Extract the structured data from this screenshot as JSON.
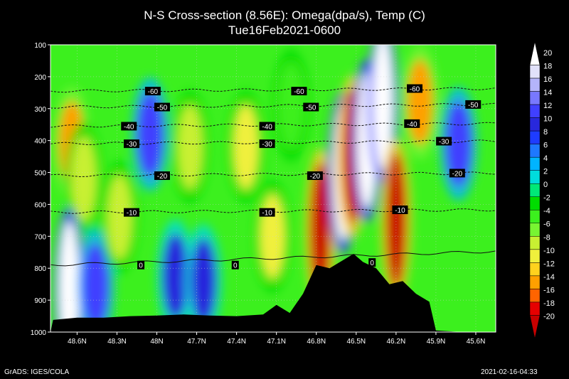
{
  "title": "N-S Cross-section (8.56E): Omega(dpa/s), Temp (C)",
  "subtitle": "Tue16Feb2021-0600",
  "credit": "GrADS: IGES/COLA",
  "timestamp": "2021-02-16-04:33",
  "chart_data": {
    "type": "heatmap",
    "xlabel": "",
    "ylabel": "",
    "x_ticks": [
      "48.6N",
      "48.3N",
      "48N",
      "47.7N",
      "47.4N",
      "47.1N",
      "46.8N",
      "46.5N",
      "46.2N",
      "45.9N",
      "45.6N"
    ],
    "x_tick_values": [
      48.6,
      48.3,
      48.0,
      47.7,
      47.4,
      47.1,
      46.8,
      46.5,
      46.2,
      45.9,
      45.6
    ],
    "xlim": [
      48.8,
      45.45
    ],
    "y_ticks": [
      "100",
      "200",
      "300",
      "400",
      "500",
      "600",
      "700",
      "800",
      "900",
      "1000"
    ],
    "y_tick_values": [
      100,
      200,
      300,
      400,
      500,
      600,
      700,
      800,
      900,
      1000
    ],
    "ylim": [
      1000,
      100
    ],
    "grid": "dotted",
    "colorbar": {
      "labels": [
        "20",
        "18",
        "16",
        "14",
        "12",
        "10",
        "8",
        "6",
        "4",
        "2",
        "0",
        "-2",
        "-4",
        "-6",
        "-8",
        "-10",
        "-12",
        "-14",
        "-16",
        "-18",
        "-20"
      ],
      "colors": [
        "#ffffff",
        "#e1e1fa",
        "#b4b4fa",
        "#7878ff",
        "#4040ff",
        "#2828dc",
        "#1e3cff",
        "#1e78ff",
        "#00b4ff",
        "#00dcdc",
        "#00e878",
        "#00dc00",
        "#3cf01e",
        "#78f532",
        "#c8f032",
        "#f0f03c",
        "#ffd21e",
        "#ffa000",
        "#ff6400",
        "#e60000",
        "#c80000"
      ]
    },
    "temperature_contours": [
      {
        "label": "-60",
        "pressure": 245
      },
      {
        "label": "-50",
        "pressure": 295
      },
      {
        "label": "-40",
        "pressure": 355
      },
      {
        "label": "-30",
        "pressure": 410
      },
      {
        "label": "-20",
        "pressure": 510
      },
      {
        "label": "-10",
        "pressure": 625
      },
      {
        "label": "0",
        "pressure": 790
      }
    ],
    "contour_label_positions": [
      {
        "label": "-60",
        "lat": 48.03
      },
      {
        "label": "-60",
        "lat": 46.93
      },
      {
        "label": "-60",
        "lat": 46.06
      },
      {
        "label": "-50",
        "lat": 47.96
      },
      {
        "label": "-50",
        "lat": 46.84
      },
      {
        "label": "-50",
        "lat": 45.62
      },
      {
        "label": "-40",
        "lat": 48.21
      },
      {
        "label": "-40",
        "lat": 47.17
      },
      {
        "label": "-40",
        "lat": 46.08
      },
      {
        "label": "-30",
        "lat": 48.19
      },
      {
        "label": "-30",
        "lat": 47.17
      },
      {
        "label": "-30",
        "lat": 45.84
      },
      {
        "label": "-20",
        "lat": 47.96
      },
      {
        "label": "-20",
        "lat": 46.81
      },
      {
        "label": "-20",
        "lat": 45.74
      },
      {
        "label": "-10",
        "lat": 48.19
      },
      {
        "label": "-10",
        "lat": 47.17
      },
      {
        "label": "-10",
        "lat": 46.17
      },
      {
        "label": "0",
        "lat": 48.12
      },
      {
        "label": "0",
        "lat": 47.41
      },
      {
        "label": "0",
        "lat": 46.38
      }
    ],
    "omega_features": [
      {
        "lat": 48.64,
        "pressure": 410,
        "value": -14
      },
      {
        "lat": 48.55,
        "pressure": 520,
        "value": -8
      },
      {
        "lat": 48.05,
        "pressure": 380,
        "value": 12
      },
      {
        "lat": 48.66,
        "pressure": 865,
        "value": 20
      },
      {
        "lat": 48.46,
        "pressure": 855,
        "value": 12
      },
      {
        "lat": 48.28,
        "pressure": 640,
        "value": -8
      },
      {
        "lat": 47.86,
        "pressure": 825,
        "value": 10
      },
      {
        "lat": 47.65,
        "pressure": 840,
        "value": 10
      },
      {
        "lat": 47.75,
        "pressure": 420,
        "value": -8
      },
      {
        "lat": 47.33,
        "pressure": 420,
        "value": -10
      },
      {
        "lat": 47.13,
        "pressure": 700,
        "value": -10
      },
      {
        "lat": 46.77,
        "pressure": 680,
        "value": -20
      },
      {
        "lat": 46.6,
        "pressure": 500,
        "value": 20
      },
      {
        "lat": 46.53,
        "pressure": 450,
        "value": -20
      },
      {
        "lat": 46.42,
        "pressure": 400,
        "value": 20
      },
      {
        "lat": 46.3,
        "pressure": 280,
        "value": 20
      },
      {
        "lat": 46.2,
        "pressure": 650,
        "value": -20
      },
      {
        "lat": 46.02,
        "pressure": 280,
        "value": -14
      },
      {
        "lat": 45.73,
        "pressure": 410,
        "value": 12
      },
      {
        "lat": 46.99,
        "pressure": 290,
        "value": -4
      }
    ],
    "terrain": [
      [
        48.78,
        962
      ],
      [
        48.6,
        955
      ],
      [
        48.4,
        955
      ],
      [
        48.2,
        950
      ],
      [
        48.0,
        948
      ],
      [
        47.8,
        945
      ],
      [
        47.6,
        948
      ],
      [
        47.4,
        950
      ],
      [
        47.2,
        945
      ],
      [
        47.1,
        915
      ],
      [
        47.0,
        940
      ],
      [
        46.9,
        880
      ],
      [
        46.8,
        790
      ],
      [
        46.7,
        800
      ],
      [
        46.6,
        775
      ],
      [
        46.52,
        755
      ],
      [
        46.45,
        780
      ],
      [
        46.35,
        800
      ],
      [
        46.25,
        850
      ],
      [
        46.15,
        840
      ],
      [
        46.05,
        880
      ],
      [
        45.95,
        905
      ],
      [
        45.9,
        995
      ],
      [
        45.7,
        1000
      ],
      [
        45.47,
        1008
      ]
    ]
  }
}
